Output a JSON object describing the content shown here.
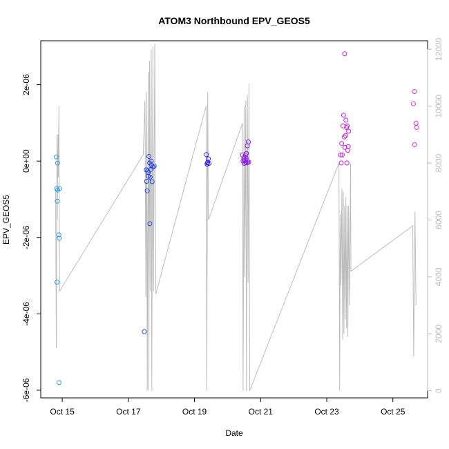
{
  "chart_data": {
    "type": "scatter",
    "title": "ATOM3 Northbound EPV_GEOS5",
    "xlabel": "Date",
    "ylabel": "EPV_GEOS5",
    "x_unit": "day of October",
    "xlim": [
      14.35,
      26.05
    ],
    "ylim": [
      -6.2e-06,
      3.15e-06
    ],
    "y2lim": [
      -250,
      12300
    ],
    "x_ticks": [
      {
        "value": 15,
        "label": "Oct 15"
      },
      {
        "value": 17,
        "label": "Oct 17"
      },
      {
        "value": 19,
        "label": "Oct 19"
      },
      {
        "value": 21,
        "label": "Oct 21"
      },
      {
        "value": 23,
        "label": "Oct 23"
      },
      {
        "value": 25,
        "label": "Oct 25"
      }
    ],
    "y_ticks": [
      {
        "value": -6e-06,
        "label": "-6e-06"
      },
      {
        "value": -4e-06,
        "label": "-4e-06"
      },
      {
        "value": -2e-06,
        "label": "-2e-06"
      },
      {
        "value": 0,
        "label": "0e+00"
      },
      {
        "value": 2e-06,
        "label": "2e-06"
      }
    ],
    "y2_ticks": [
      {
        "value": 0,
        "label": "0"
      },
      {
        "value": 2000,
        "label": "2000"
      },
      {
        "value": 4000,
        "label": "4000"
      },
      {
        "value": 6000,
        "label": "6000"
      },
      {
        "value": 8000,
        "label": "8000"
      },
      {
        "value": 10000,
        "label": "10000"
      },
      {
        "value": 12000,
        "label": "12000"
      }
    ],
    "colors": {
      "altitude_line": "#bdbdbd",
      "frame": "#000000",
      "flight_colors": [
        "#2f9fe8",
        "#2444e0",
        "#3328ee",
        "#8a1ce8",
        "#c81ee8",
        "#e030e8"
      ]
    },
    "series": [
      {
        "points": [
          [
            14.82,
            1.1e-07
          ],
          [
            14.86,
            -5.5e-08
          ],
          [
            14.83,
            -7.2e-07
          ],
          [
            14.86,
            -7.6e-07
          ],
          [
            14.92,
            -7.2e-07
          ],
          [
            14.85,
            -1.05e-06
          ],
          [
            14.9,
            -1.93e-06
          ],
          [
            14.91,
            -2.02e-06
          ],
          [
            14.84,
            -3.17e-06
          ],
          [
            14.9,
            -5.8e-06
          ]
        ]
      },
      {
        "points": [
          [
            17.48,
            -4.47e-06
          ],
          [
            17.54,
            -2.3e-07
          ],
          [
            17.58,
            -2.6e-07
          ],
          [
            17.55,
            -5.3e-07
          ],
          [
            17.6,
            -3e-07
          ],
          [
            17.62,
            1.2e-07
          ],
          [
            17.64,
            -5e-08
          ],
          [
            17.57,
            -7.8e-07
          ],
          [
            17.66,
            -4.2e-07
          ],
          [
            17.68,
            -2.2e-07
          ],
          [
            17.7,
            -1e-07
          ],
          [
            17.72,
            -5.4e-07
          ],
          [
            17.74,
            -1.6e-07
          ],
          [
            17.78,
            -1.3e-07
          ],
          [
            17.65,
            -1.64e-06
          ],
          [
            17.6,
            -4e-07
          ],
          [
            17.69,
            0
          ]
        ]
      },
      {
        "points": [
          [
            19.36,
            1.7e-07
          ],
          [
            19.38,
            -8e-08
          ],
          [
            19.4,
            -3e-08
          ],
          [
            19.42,
            6e-08
          ],
          [
            19.44,
            -6e-08
          ],
          [
            19.39,
            -5e-08
          ]
        ]
      },
      {
        "points": [
          [
            20.45,
            1.6e-07
          ],
          [
            20.47,
            0
          ],
          [
            20.49,
            6e-08
          ],
          [
            20.5,
            -6e-08
          ],
          [
            20.52,
            1e-07
          ],
          [
            20.54,
            1.6e-07
          ],
          [
            20.55,
            -3e-08
          ],
          [
            20.57,
            2e-07
          ],
          [
            20.58,
            -5e-08
          ],
          [
            20.6,
            4e-07
          ],
          [
            20.61,
            -2e-08
          ],
          [
            20.63,
            5e-07
          ],
          [
            20.64,
            -3e-08
          ],
          [
            20.51,
            1e-08
          ],
          [
            20.56,
            8e-08
          ]
        ]
      },
      {
        "points": [
          [
            23.42,
            1.6e-07
          ],
          [
            23.44,
            -5e-08
          ],
          [
            23.45,
            4.6e-07
          ],
          [
            23.47,
            1.6e-07
          ],
          [
            23.49,
            9.2e-07
          ],
          [
            23.51,
            1.2e-06
          ],
          [
            23.53,
            6.3e-07
          ],
          [
            23.54,
            2.81e-06
          ],
          [
            23.55,
            3.6e-07
          ],
          [
            23.57,
            6.7e-07
          ],
          [
            23.58,
            1.07e-06
          ],
          [
            23.6,
            8.8e-07
          ],
          [
            23.61,
            -5e-08
          ],
          [
            23.62,
            9.2e-07
          ],
          [
            23.64,
            2.8e-07
          ],
          [
            23.65,
            3.8e-07
          ],
          [
            23.66,
            7.8e-07
          ]
        ]
      },
      {
        "points": [
          [
            25.62,
            1.5e-06
          ],
          [
            25.65,
            1.82e-06
          ],
          [
            25.66,
            4.3e-07
          ],
          [
            25.7,
            9.9e-07
          ],
          [
            25.72,
            8.8e-07
          ]
        ]
      }
    ],
    "altitude_line": [
      [
        14.8,
        7000
      ],
      [
        14.82,
        1500
      ],
      [
        14.84,
        9000
      ],
      [
        14.85,
        6000
      ],
      [
        14.87,
        9000
      ],
      [
        14.88,
        7500
      ],
      [
        14.9,
        10000
      ],
      [
        14.91,
        6500
      ],
      [
        14.92,
        3500
      ],
      [
        17.45,
        8300
      ],
      [
        17.5,
        10200
      ],
      [
        17.53,
        3300
      ],
      [
        17.55,
        10500
      ],
      [
        17.57,
        0
      ],
      [
        17.6,
        11200
      ],
      [
        17.62,
        0
      ],
      [
        17.64,
        11600
      ],
      [
        17.66,
        3500
      ],
      [
        17.69,
        12000
      ],
      [
        17.71,
        0
      ],
      [
        17.74,
        12100
      ],
      [
        17.76,
        3500
      ],
      [
        17.8,
        12200
      ],
      [
        17.83,
        3400
      ],
      [
        19.35,
        10000
      ],
      [
        19.37,
        0
      ],
      [
        19.4,
        10500
      ],
      [
        19.42,
        6000
      ],
      [
        20.45,
        9400
      ],
      [
        20.47,
        0
      ],
      [
        20.5,
        10000
      ],
      [
        20.52,
        4000
      ],
      [
        20.55,
        10200
      ],
      [
        20.57,
        0
      ],
      [
        20.6,
        10400
      ],
      [
        20.62,
        3800
      ],
      [
        20.65,
        10800
      ],
      [
        20.67,
        0
      ],
      [
        23.37,
        8000
      ],
      [
        23.39,
        0
      ],
      [
        23.41,
        6200
      ],
      [
        23.43,
        3700
      ],
      [
        23.46,
        7100
      ],
      [
        23.48,
        1800
      ],
      [
        23.5,
        7000
      ],
      [
        23.52,
        2000
      ],
      [
        23.54,
        6500
      ],
      [
        23.56,
        2500
      ],
      [
        23.58,
        6800
      ],
      [
        23.6,
        2200
      ],
      [
        23.62,
        6500
      ],
      [
        23.64,
        1900
      ],
      [
        23.66,
        6500
      ],
      [
        23.69,
        3000
      ],
      [
        23.72,
        8000
      ],
      [
        23.73,
        4200
      ],
      [
        25.6,
        5800
      ],
      [
        25.63,
        1200
      ],
      [
        25.67,
        6300
      ],
      [
        25.7,
        3000
      ]
    ]
  }
}
